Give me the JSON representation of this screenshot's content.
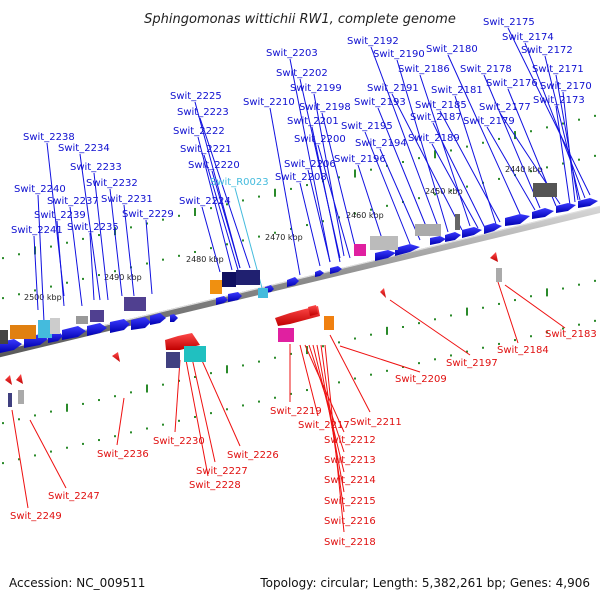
{
  "title": "Sphingomonas wittichii RW1, complete genome",
  "footer": {
    "accession": "Accession: NC_009511",
    "info": "Topology: circular; Length: 5,382,261 bp; Genes: 4,906"
  },
  "kbp_ticks": [
    "2440 kbp",
    "2450 kbp",
    "2460 kbp",
    "2470 kbp",
    "2480 kbp",
    "2490 kbp",
    "2500 kbp"
  ],
  "labels_forward": [
    "Swit_2175",
    "Swit_2174",
    "Swit_2172",
    "Swit_2171",
    "Swit_2170",
    "Swit_2173",
    "Swit_2192",
    "Swit_2190",
    "Swit_2180",
    "Swit_2203",
    "Swit_2186",
    "Swit_2178",
    "Swit_2202",
    "Swit_2181",
    "Swit_2176",
    "Swit_2199",
    "Swit_2191",
    "Swit_2225",
    "Swit_2210",
    "Swit_2198",
    "Swit_2193",
    "Swit_2185",
    "Swit_2177",
    "Swit_2223",
    "Swit_2201",
    "Swit_2187",
    "Swit_2179",
    "Swit_2195",
    "Swit_2222",
    "Swit_2200",
    "Swit_2194",
    "Swit_2189",
    "Swit_2221",
    "Swit_2238",
    "Swit_2196",
    "Swit_2234",
    "Swit_2220",
    "Swit_2206",
    "Swit_2208",
    "Swit_2233",
    "Swit_2232",
    "Swit_2240",
    "Swit_2224",
    "Swit_2237",
    "Swit_2231",
    "Swit_2239",
    "Swit_2229",
    "Swit_2235",
    "Swit_2241"
  ],
  "label_rna": "Swit_R0023",
  "labels_reverse": [
    "Swit_2183",
    "Swit_2184",
    "Swit_2197",
    "Swit_2209",
    "Swit_2211",
    "Swit_2219",
    "Swit_2217",
    "Swit_2212",
    "Swit_2213",
    "Swit_2214",
    "Swit_2215",
    "Swit_2216",
    "Swit_2218",
    "Swit_2230",
    "Swit_2226",
    "Swit_2227",
    "Swit_2228",
    "Swit_2236",
    "Swit_2247",
    "Swit_2249"
  ],
  "colors": {
    "forward_gene": "#1010e0",
    "reverse_gene": "#ee1111",
    "rna": "#44bbdd",
    "backbone": "#888888",
    "tick": "#2a8a2a"
  }
}
